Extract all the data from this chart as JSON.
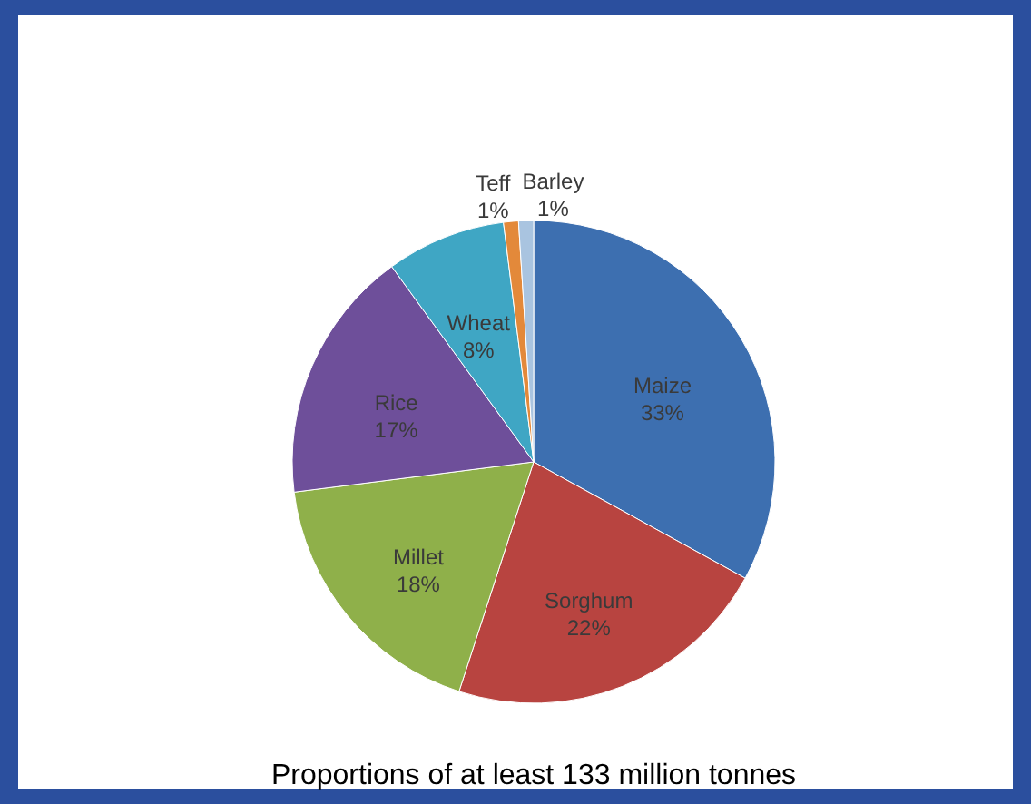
{
  "chart_data": {
    "type": "pie",
    "categories": [
      "Maize",
      "Sorghum",
      "Millet",
      "Rice",
      "Wheat",
      "Teff",
      "Barley"
    ],
    "values": [
      33,
      22,
      18,
      17,
      8,
      1,
      1
    ],
    "value_labels": [
      "33%",
      "22%",
      "18%",
      "17%",
      "8%",
      "1%",
      "1%"
    ],
    "colors": [
      "#3d6fb0",
      "#b84440",
      "#8fb04a",
      "#6e4f9a",
      "#3fa6c4",
      "#e3893a",
      "#a9c4e0"
    ],
    "annotations": [
      "Proportions of at least 133 million tonnes"
    ]
  }
}
